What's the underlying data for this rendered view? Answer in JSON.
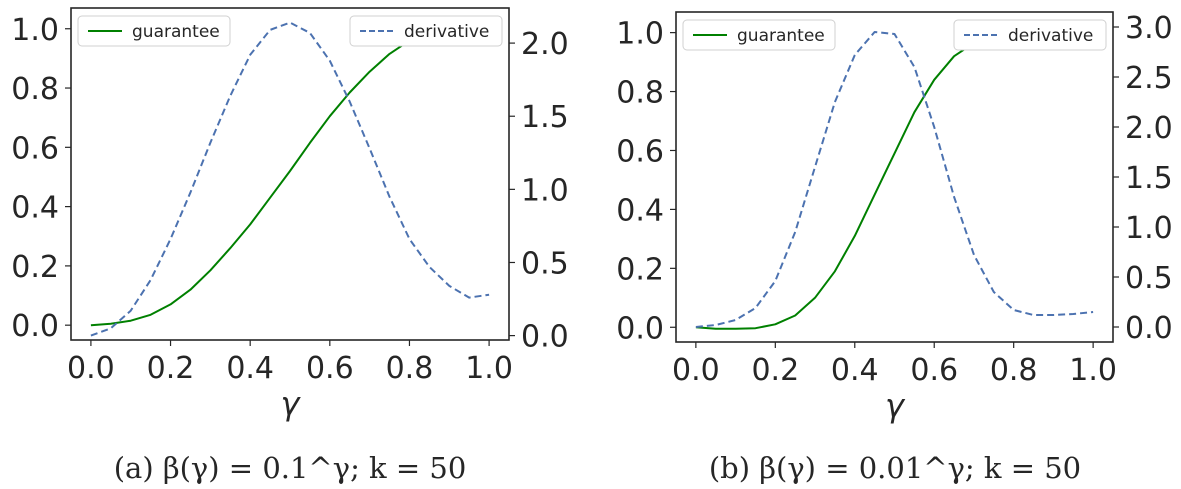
{
  "chart_data": [
    {
      "type": "line",
      "caption": "(a) β(γ) = 0.1^γ; k = 50",
      "xlabel": "γ",
      "xlim": [
        -0.05,
        1.05
      ],
      "xticks": [
        0.0,
        0.2,
        0.4,
        0.6,
        0.8,
        1.0
      ],
      "xtick_labels": [
        "0.0",
        "0.2",
        "0.4",
        "0.6",
        "0.8",
        "1.0"
      ],
      "y_left": {
        "lim": [
          -0.05,
          1.07
        ],
        "ticks": [
          0.0,
          0.2,
          0.4,
          0.6,
          0.8,
          1.0
        ],
        "tick_labels": [
          "0.0",
          "0.2",
          "0.4",
          "0.6",
          "0.8",
          "1.0"
        ]
      },
      "y_right": {
        "lim": [
          -0.03,
          2.24
        ],
        "ticks": [
          0.0,
          0.5,
          1.0,
          1.5,
          2.0
        ],
        "tick_labels": [
          "0.0",
          "0.5",
          "1.0",
          "1.5",
          "2.0"
        ]
      },
      "grid": false,
      "series": [
        {
          "name": "guarantee",
          "axis": "left",
          "color": "#008000",
          "style": "solid",
          "x": [
            0.0,
            0.05,
            0.1,
            0.15,
            0.2,
            0.25,
            0.3,
            0.35,
            0.4,
            0.45,
            0.5,
            0.55,
            0.6,
            0.65,
            0.7,
            0.75,
            0.8,
            0.85,
            0.9,
            0.95,
            1.0
          ],
          "values": [
            0.0,
            0.005,
            0.015,
            0.035,
            0.07,
            0.12,
            0.185,
            0.26,
            0.34,
            0.43,
            0.52,
            0.615,
            0.705,
            0.785,
            0.855,
            0.915,
            0.96,
            0.99,
            1.0,
            1.01,
            1.02
          ]
        },
        {
          "name": "derivative",
          "axis": "right",
          "color": "#4c72b0",
          "style": "dashed",
          "x": [
            0.0,
            0.05,
            0.1,
            0.15,
            0.2,
            0.25,
            0.3,
            0.35,
            0.4,
            0.45,
            0.5,
            0.55,
            0.6,
            0.65,
            0.7,
            0.75,
            0.8,
            0.85,
            0.9,
            0.95,
            1.0
          ],
          "values": [
            0.0,
            0.05,
            0.17,
            0.38,
            0.66,
            0.98,
            1.32,
            1.64,
            1.92,
            2.09,
            2.14,
            2.07,
            1.88,
            1.6,
            1.28,
            0.95,
            0.66,
            0.47,
            0.34,
            0.26,
            0.28
          ]
        }
      ],
      "legend": [
        {
          "label": "guarantee",
          "placement": "upper-left"
        },
        {
          "label": "derivative",
          "placement": "upper-right"
        }
      ]
    },
    {
      "type": "line",
      "caption": "(b) β(γ) = 0.01^γ; k = 50",
      "xlabel": "γ",
      "xlim": [
        -0.05,
        1.05
      ],
      "xticks": [
        0.0,
        0.2,
        0.4,
        0.6,
        0.8,
        1.0
      ],
      "xtick_labels": [
        "0.0",
        "0.2",
        "0.4",
        "0.6",
        "0.8",
        "1.0"
      ],
      "y_left": {
        "lim": [
          -0.05,
          1.07
        ],
        "ticks": [
          0.0,
          0.2,
          0.4,
          0.6,
          0.8,
          1.0
        ],
        "tick_labels": [
          "0.0",
          "0.2",
          "0.4",
          "0.6",
          "0.8",
          "1.0"
        ]
      },
      "y_right": {
        "lim": [
          -0.15,
          3.15
        ],
        "ticks": [
          0.0,
          0.5,
          1.0,
          1.5,
          2.0,
          2.5,
          3.0
        ],
        "tick_labels": [
          "0.0",
          "0.5",
          "1.0",
          "1.5",
          "2.0",
          "2.5",
          "3.0"
        ]
      },
      "grid": false,
      "series": [
        {
          "name": "guarantee",
          "axis": "left",
          "color": "#008000",
          "style": "solid",
          "x": [
            0.0,
            0.05,
            0.1,
            0.15,
            0.2,
            0.25,
            0.3,
            0.35,
            0.4,
            0.45,
            0.5,
            0.55,
            0.6,
            0.65,
            0.7,
            0.75,
            0.8,
            0.85,
            0.9,
            0.95,
            1.0
          ],
          "values": [
            0.0,
            -0.005,
            -0.005,
            -0.003,
            0.01,
            0.04,
            0.1,
            0.19,
            0.31,
            0.45,
            0.59,
            0.73,
            0.84,
            0.92,
            0.965,
            0.99,
            1.0,
            1.005,
            1.01,
            1.015,
            1.02
          ]
        },
        {
          "name": "derivative",
          "axis": "right",
          "color": "#4c72b0",
          "style": "dashed",
          "x": [
            0.0,
            0.05,
            0.1,
            0.15,
            0.2,
            0.25,
            0.3,
            0.35,
            0.4,
            0.45,
            0.5,
            0.55,
            0.6,
            0.65,
            0.7,
            0.75,
            0.8,
            0.85,
            0.9,
            0.95,
            1.0
          ],
          "values": [
            0.0,
            0.02,
            0.07,
            0.19,
            0.46,
            0.95,
            1.6,
            2.25,
            2.72,
            2.95,
            2.93,
            2.6,
            2.0,
            1.3,
            0.72,
            0.35,
            0.17,
            0.12,
            0.12,
            0.13,
            0.15
          ]
        }
      ],
      "legend": [
        {
          "label": "guarantee",
          "placement": "upper-left"
        },
        {
          "label": "derivative",
          "placement": "upper-right"
        }
      ]
    }
  ]
}
